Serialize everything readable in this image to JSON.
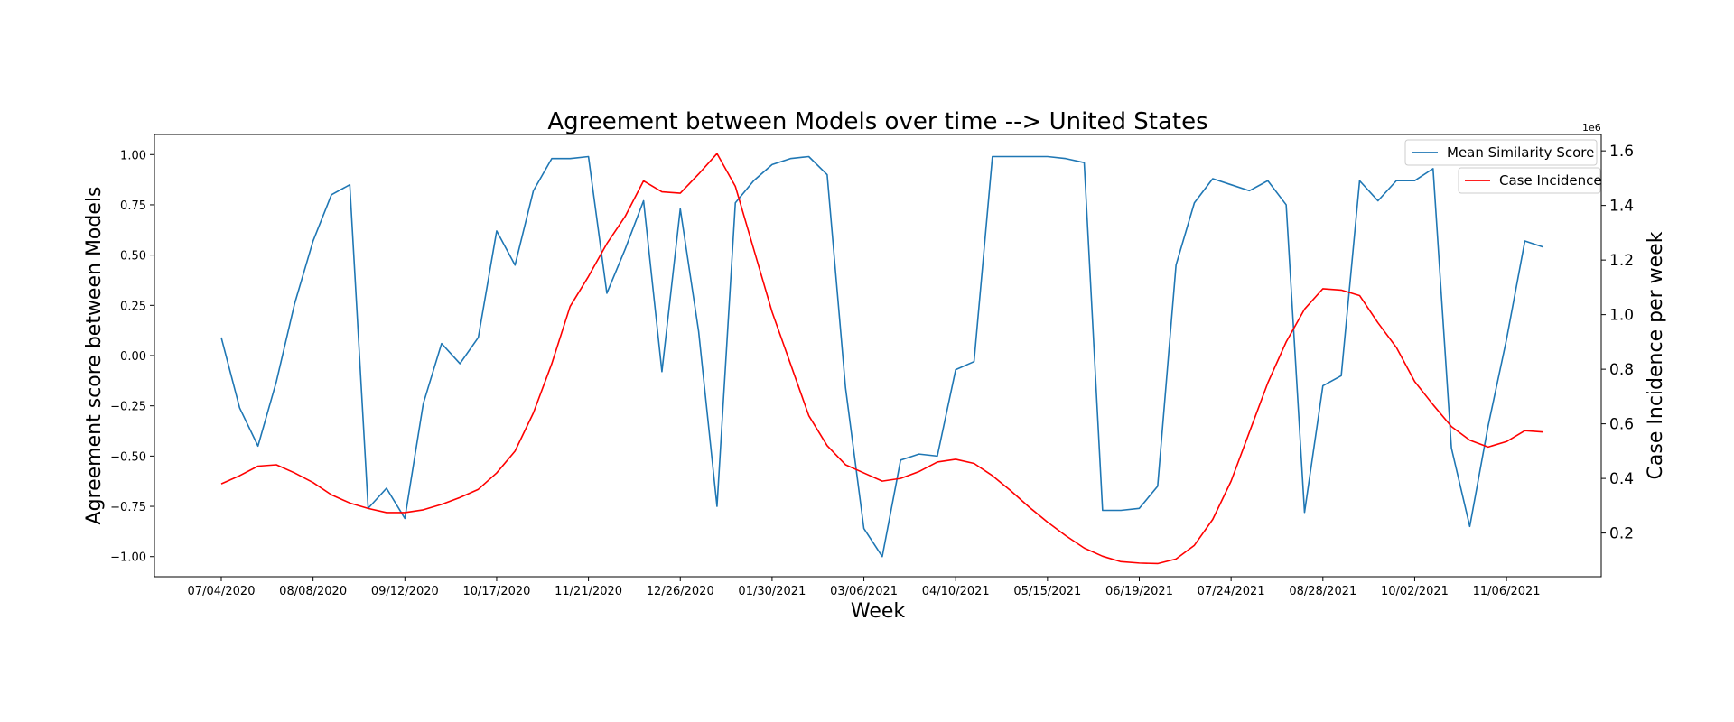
{
  "chart_data": {
    "type": "line",
    "title": "Agreement between Models over time --> United States",
    "xlabel": "Week",
    "ylabel_left": "Agreement score between Models",
    "ylabel_right": "Case Incidence per week",
    "right_axis_offset_label": "1e6",
    "grid": false,
    "legend_placement": "top-right",
    "x_tick_labels": [
      "07/04/2020",
      "08/08/2020",
      "09/12/2020",
      "10/17/2020",
      "11/21/2020",
      "12/26/2020",
      "01/30/2021",
      "03/06/2021",
      "04/10/2021",
      "05/15/2021",
      "06/19/2021",
      "07/24/2021",
      "08/28/2021",
      "10/02/2021",
      "11/06/2021"
    ],
    "y_left_ticks": [
      -1.0,
      -0.75,
      -0.5,
      -0.25,
      0.0,
      0.25,
      0.5,
      0.75,
      1.0
    ],
    "y_left_tick_labels": [
      "−1.00",
      "−0.75",
      "−0.50",
      "−0.25",
      "0.00",
      "0.25",
      "0.50",
      "0.75",
      "1.00"
    ],
    "y_left_lim": [
      -1.1,
      1.1
    ],
    "y_right_ticks": [
      0.2,
      0.4,
      0.6,
      0.8,
      1.0,
      1.2,
      1.4,
      1.6
    ],
    "y_right_tick_labels": [
      "0.2",
      "0.4",
      "0.6",
      "0.8",
      "1.0",
      "1.2",
      "1.4",
      "1.6"
    ],
    "y_right_lim": [
      0.04,
      1.66
    ],
    "series": [
      {
        "name": "Mean Similarity Score",
        "axis": "left",
        "color": "#1f77b4",
        "values": [
          0.09,
          -0.26,
          -0.45,
          -0.13,
          0.26,
          0.57,
          0.8,
          0.85,
          -0.76,
          -0.66,
          -0.81,
          -0.24,
          0.06,
          -0.04,
          0.09,
          0.62,
          0.45,
          0.82,
          0.98,
          0.98,
          0.99,
          0.31,
          0.53,
          0.77,
          -0.08,
          0.73,
          0.12,
          -0.75,
          0.76,
          0.87,
          0.95,
          0.98,
          0.99,
          0.9,
          -0.16,
          -0.86,
          -1.0,
          -0.52,
          -0.49,
          -0.5,
          -0.07,
          -0.03,
          0.99,
          0.99,
          0.99,
          0.99,
          0.98,
          0.96,
          -0.77,
          -0.77,
          -0.76,
          -0.65,
          0.45,
          0.76,
          0.88,
          0.85,
          0.82,
          0.87,
          0.75,
          -0.78,
          -0.15,
          -0.1,
          0.87,
          0.77,
          0.87,
          0.87,
          0.93,
          -0.46,
          -0.85,
          -0.35,
          0.08,
          0.57,
          0.54
        ]
      },
      {
        "name": "Case Incidence",
        "axis": "right",
        "color": "#ff0000",
        "scale_note": "values in units of 1e6",
        "values": [
          0.38,
          0.41,
          0.445,
          0.45,
          0.42,
          0.385,
          0.34,
          0.31,
          0.29,
          0.275,
          0.275,
          0.285,
          0.305,
          0.33,
          0.36,
          0.42,
          0.5,
          0.64,
          0.82,
          1.03,
          1.14,
          1.26,
          1.36,
          1.49,
          1.45,
          1.445,
          1.515,
          1.59,
          1.47,
          1.24,
          1.01,
          0.82,
          0.63,
          0.52,
          0.45,
          0.42,
          0.39,
          0.4,
          0.425,
          0.46,
          0.47,
          0.455,
          0.41,
          0.355,
          0.295,
          0.24,
          0.19,
          0.145,
          0.115,
          0.095,
          0.09,
          0.088,
          0.105,
          0.155,
          0.25,
          0.39,
          0.57,
          0.75,
          0.9,
          1.02,
          1.095,
          1.09,
          1.07,
          0.97,
          0.88,
          0.755,
          0.67,
          0.59,
          0.54,
          0.515,
          0.535,
          0.575,
          0.57
        ]
      }
    ]
  }
}
